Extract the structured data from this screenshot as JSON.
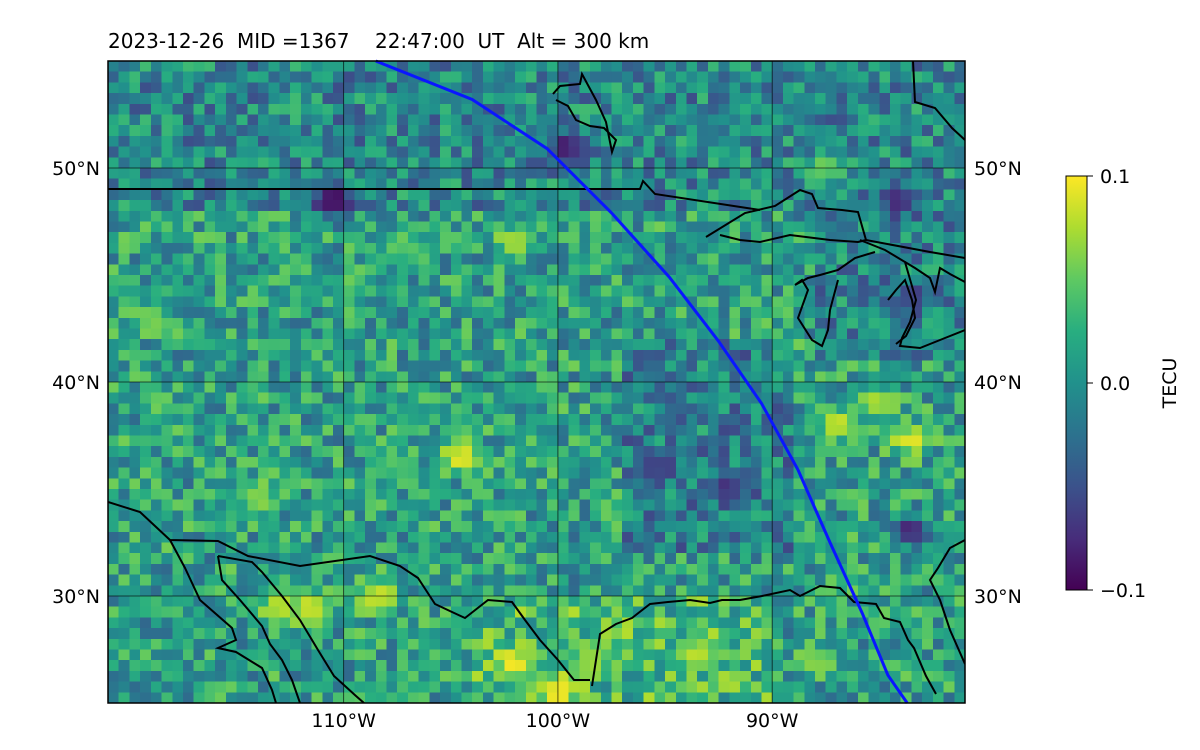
{
  "title": {
    "date": "2023-12-26",
    "mid": "MID =1367",
    "time": "22:47:00  UT",
    "alt": "Alt = 300 km"
  },
  "map": {
    "lon_range": [
      -121,
      -81
    ],
    "lat_range": [
      25,
      55
    ],
    "lon_ticks": [
      {
        "value": -110,
        "label": "110°W"
      },
      {
        "value": -100,
        "label": "100°W"
      },
      {
        "value": -90,
        "label": "90°W"
      }
    ],
    "lat_ticks": [
      {
        "value": 50,
        "label": "50°N"
      },
      {
        "value": 40,
        "label": "40°N"
      },
      {
        "value": 30,
        "label": "30°N"
      }
    ],
    "satellite_track": [
      [
        -108.5,
        55
      ],
      [
        -104,
        53.2
      ],
      [
        -100.5,
        50.9
      ],
      [
        -97.5,
        47.9
      ],
      [
        -94.8,
        44.9
      ],
      [
        -92.5,
        41.9
      ],
      [
        -90.5,
        39.0
      ],
      [
        -88.8,
        35.9
      ],
      [
        -87.3,
        32.5
      ],
      [
        -85.8,
        29.2
      ],
      [
        -84.6,
        26.3
      ],
      [
        -83.7,
        25
      ]
    ],
    "track_color": "#0a16ff",
    "grid_color": "#000000"
  },
  "colorbar": {
    "label": "TECU",
    "colormap": "viridis",
    "min": -0.1,
    "max": 0.1,
    "ticks": [
      {
        "value": 0.1,
        "label": "0.1"
      },
      {
        "value": 0.0,
        "label": "0.0"
      },
      {
        "value": -0.1,
        "label": "−0.1"
      }
    ]
  },
  "chart_data": {
    "type": "heatmap",
    "title": "2023-12-26  MID =1367    22:47:00  UT  Alt = 300 km",
    "xlabel": "",
    "ylabel": "",
    "xlim": [
      -121,
      -81
    ],
    "ylim": [
      25,
      55
    ],
    "colorbar_label": "TECU",
    "clim": [
      -0.1,
      0.1
    ],
    "grid": true,
    "anomalies": [
      {
        "lon": -99.5,
        "lat": 51.0,
        "value": -0.09
      },
      {
        "lon": -110.5,
        "lat": 48.5,
        "value": -0.1
      },
      {
        "lon": -84.0,
        "lat": 48.5,
        "value": -0.08
      },
      {
        "lon": -83.5,
        "lat": 44.0,
        "value": -0.07
      },
      {
        "lon": -92.0,
        "lat": 35.0,
        "value": -0.08
      },
      {
        "lon": -95.5,
        "lat": 36.0,
        "value": -0.07
      },
      {
        "lon": -83.5,
        "lat": 33.0,
        "value": -0.09
      },
      {
        "lon": -104.5,
        "lat": 36.5,
        "value": 0.1
      },
      {
        "lon": -111.5,
        "lat": 29.5,
        "value": 0.09
      },
      {
        "lon": -113.0,
        "lat": 29.5,
        "value": 0.09
      },
      {
        "lon": -108.5,
        "lat": 30.0,
        "value": 0.09
      },
      {
        "lon": -102.0,
        "lat": 26.8,
        "value": 0.1
      },
      {
        "lon": -100.0,
        "lat": 25.5,
        "value": 0.1
      },
      {
        "lon": -98.5,
        "lat": 27.0,
        "value": 0.08
      },
      {
        "lon": -87.0,
        "lat": 38.0,
        "value": 0.09
      },
      {
        "lon": -83.5,
        "lat": 37.3,
        "value": 0.1
      },
      {
        "lon": -85.0,
        "lat": 39.0,
        "value": 0.08
      },
      {
        "lon": -102.0,
        "lat": 46.5,
        "value": 0.08
      },
      {
        "lon": -119.0,
        "lat": 43.0,
        "value": 0.06
      },
      {
        "lon": -114.0,
        "lat": 34.5,
        "value": 0.07
      },
      {
        "lon": -88.0,
        "lat": 27.0,
        "value": 0.07
      },
      {
        "lon": -93.5,
        "lat": 27.3,
        "value": 0.08
      },
      {
        "lon": -87.5,
        "lat": 50.0,
        "value": 0.06
      }
    ]
  }
}
